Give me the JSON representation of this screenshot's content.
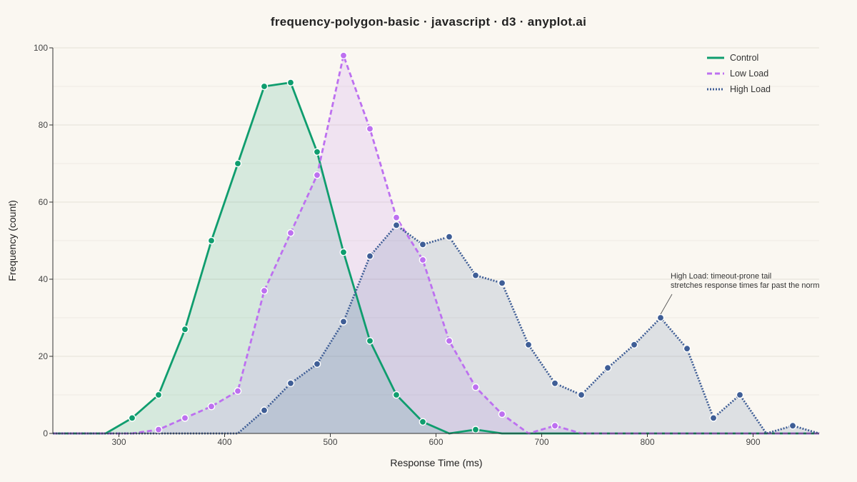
{
  "chart_data": {
    "type": "line",
    "title": "frequency-polygon-basic · javascript · d3 · anyplot.ai",
    "xlabel": "Response Time (ms)",
    "ylabel": "Frequency (count)",
    "xlim": [
      237.5,
      962.5
    ],
    "ylim": [
      0,
      100
    ],
    "x_ticks": [
      300,
      400,
      500,
      600,
      700,
      800,
      900
    ],
    "y_ticks": [
      0,
      20,
      40,
      60,
      80,
      100
    ],
    "grid": "horizontal",
    "legend_position": "top-right",
    "x": [
      237.5,
      262.5,
      287.5,
      312.5,
      337.5,
      362.5,
      387.5,
      412.5,
      437.5,
      462.5,
      487.5,
      512.5,
      537.5,
      562.5,
      587.5,
      612.5,
      637.5,
      662.5,
      687.5,
      712.5,
      737.5,
      762.5,
      787.5,
      812.5,
      837.5,
      862.5,
      887.5,
      912.5,
      937.5,
      962.5
    ],
    "series": [
      {
        "name": "Control",
        "color": "#0F9D6E",
        "style": "solid",
        "values": [
          0,
          0,
          0,
          4,
          10,
          27,
          50,
          70,
          90,
          91,
          73,
          47,
          24,
          10,
          3,
          0,
          1,
          0,
          0,
          0,
          0,
          0,
          0,
          0,
          0,
          0,
          0,
          0,
          0,
          0
        ]
      },
      {
        "name": "Low Load",
        "color": "#BD70F0",
        "style": "dashed",
        "values": [
          0,
          0,
          0,
          0,
          1,
          4,
          7,
          11,
          37,
          52,
          67,
          98,
          79,
          56,
          45,
          24,
          12,
          5,
          0,
          2,
          0,
          0,
          0,
          0,
          0,
          0,
          0,
          0,
          0,
          0
        ]
      },
      {
        "name": "High Load",
        "color": "#3F5E96",
        "style": "dotted",
        "values": [
          0,
          0,
          0,
          0,
          0,
          0,
          0,
          0,
          6,
          13,
          18,
          29,
          46,
          54,
          49,
          51,
          41,
          39,
          23,
          13,
          10,
          17,
          23,
          30,
          22,
          4,
          10,
          0,
          2,
          0
        ]
      }
    ],
    "annotations": [
      {
        "series": "High Load",
        "x": 812.5,
        "y": 30,
        "lines": [
          "High Load: timeout-prone tail",
          "stretches response times far past the norm"
        ]
      }
    ]
  }
}
